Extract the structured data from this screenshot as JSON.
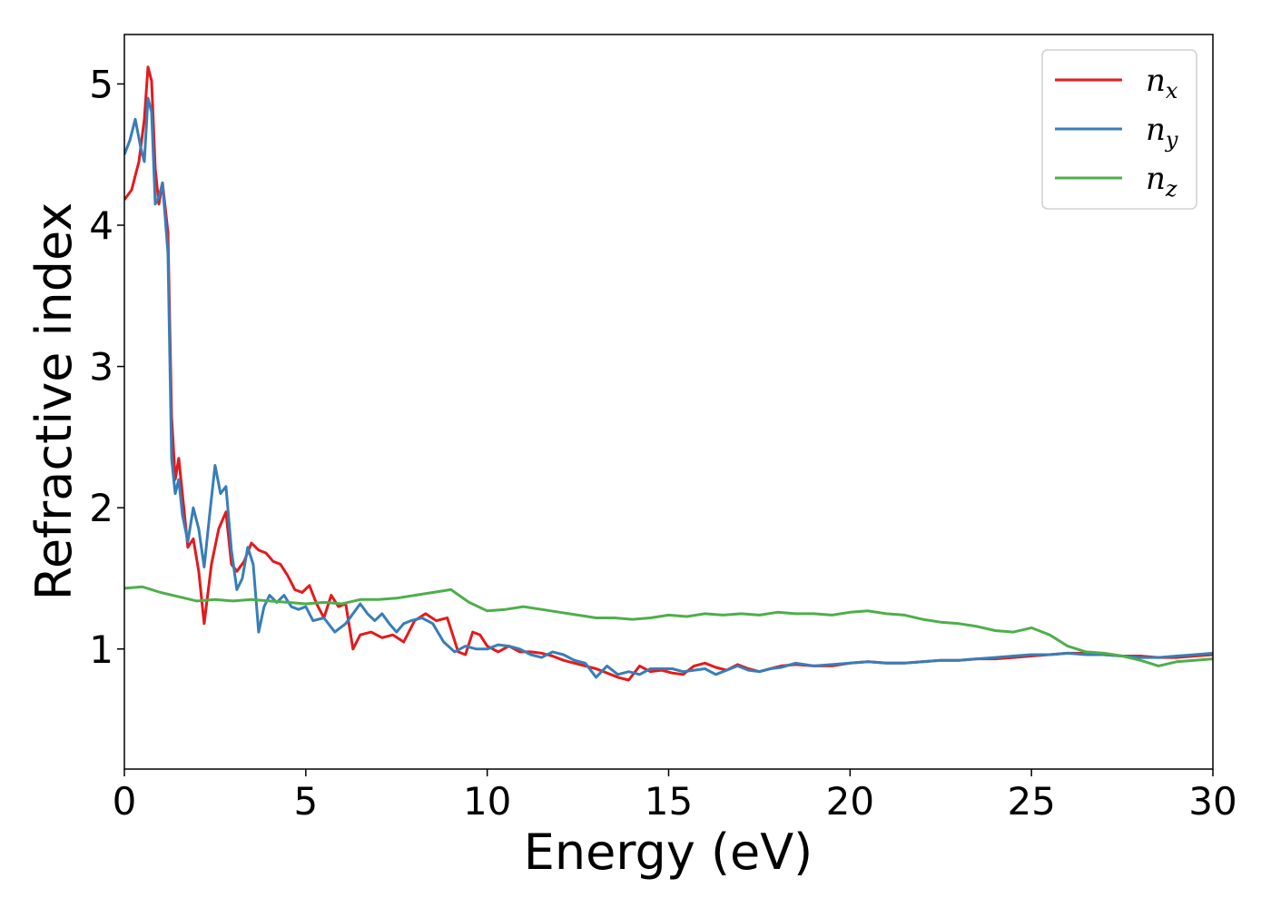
{
  "chart_data": {
    "type": "line",
    "title": "",
    "xlabel": "Energy (eV)",
    "ylabel": "Refractive index",
    "xlim": [
      0,
      30
    ],
    "ylim": [
      0.15,
      5.35
    ],
    "xticks": [
      0,
      5,
      10,
      15,
      20,
      25,
      30
    ],
    "yticks": [
      1,
      2,
      3,
      4,
      5
    ],
    "grid": false,
    "legend_position": "top-right",
    "series": [
      {
        "name": "n",
        "subscript": "x",
        "color": "#e41a1c",
        "x": [
          0,
          0.2,
          0.4,
          0.55,
          0.65,
          0.75,
          0.85,
          0.95,
          1.05,
          1.2,
          1.3,
          1.4,
          1.5,
          1.6,
          1.75,
          1.9,
          2.05,
          2.2,
          2.4,
          2.6,
          2.8,
          2.95,
          3.1,
          3.3,
          3.5,
          3.7,
          3.9,
          4.1,
          4.3,
          4.5,
          4.7,
          4.9,
          5.1,
          5.3,
          5.5,
          5.7,
          5.9,
          6.1,
          6.3,
          6.5,
          6.8,
          7.1,
          7.4,
          7.7,
          8.0,
          8.3,
          8.6,
          8.9,
          9.2,
          9.4,
          9.6,
          9.8,
          10.0,
          10.3,
          10.6,
          10.9,
          11.2,
          11.5,
          11.8,
          12.1,
          12.4,
          12.7,
          13.0,
          13.3,
          13.6,
          13.9,
          14.2,
          14.5,
          14.8,
          15.1,
          15.4,
          15.7,
          16.0,
          16.3,
          16.6,
          16.9,
          17.2,
          17.5,
          17.8,
          18.1,
          18.5,
          19.0,
          19.5,
          20.0,
          20.5,
          21.0,
          21.5,
          22.0,
          22.5,
          23.0,
          23.5,
          24.0,
          24.5,
          25.0,
          25.5,
          26.0,
          26.5,
          27.0,
          27.5,
          28.0,
          28.5,
          29.0,
          29.5,
          30.0
        ],
        "values": [
          4.18,
          4.25,
          4.45,
          4.75,
          5.12,
          5.02,
          4.4,
          4.15,
          4.3,
          3.95,
          2.65,
          2.2,
          2.35,
          2.1,
          1.72,
          1.78,
          1.55,
          1.18,
          1.6,
          1.85,
          1.97,
          1.6,
          1.55,
          1.62,
          1.75,
          1.7,
          1.68,
          1.62,
          1.6,
          1.52,
          1.42,
          1.4,
          1.45,
          1.32,
          1.22,
          1.38,
          1.3,
          1.32,
          1.0,
          1.1,
          1.12,
          1.08,
          1.1,
          1.05,
          1.2,
          1.25,
          1.2,
          1.22,
          0.98,
          0.96,
          1.12,
          1.1,
          1.02,
          0.98,
          1.02,
          0.98,
          0.98,
          0.97,
          0.95,
          0.92,
          0.9,
          0.88,
          0.86,
          0.83,
          0.8,
          0.78,
          0.88,
          0.84,
          0.85,
          0.83,
          0.82,
          0.88,
          0.9,
          0.87,
          0.85,
          0.89,
          0.86,
          0.84,
          0.86,
          0.88,
          0.89,
          0.88,
          0.88,
          0.9,
          0.91,
          0.9,
          0.9,
          0.91,
          0.92,
          0.92,
          0.93,
          0.93,
          0.94,
          0.95,
          0.96,
          0.97,
          0.97,
          0.96,
          0.95,
          0.95,
          0.94,
          0.94,
          0.95,
          0.96
        ]
      },
      {
        "name": "n",
        "subscript": "y",
        "color": "#377eb8",
        "x": [
          0,
          0.15,
          0.3,
          0.45,
          0.55,
          0.65,
          0.75,
          0.85,
          0.95,
          1.05,
          1.2,
          1.3,
          1.4,
          1.5,
          1.6,
          1.75,
          1.9,
          2.05,
          2.2,
          2.35,
          2.5,
          2.65,
          2.8,
          2.95,
          3.1,
          3.25,
          3.4,
          3.55,
          3.7,
          3.85,
          4.0,
          4.2,
          4.4,
          4.6,
          4.8,
          5.0,
          5.2,
          5.5,
          5.8,
          6.1,
          6.3,
          6.5,
          6.7,
          6.9,
          7.1,
          7.3,
          7.5,
          7.7,
          7.9,
          8.2,
          8.5,
          8.8,
          9.1,
          9.4,
          9.7,
          10.0,
          10.3,
          10.6,
          10.9,
          11.2,
          11.5,
          11.8,
          12.1,
          12.4,
          12.7,
          13.0,
          13.3,
          13.6,
          13.9,
          14.2,
          14.5,
          14.8,
          15.1,
          15.4,
          15.7,
          16.0,
          16.3,
          16.6,
          16.9,
          17.2,
          17.5,
          17.8,
          18.1,
          18.5,
          19.0,
          19.5,
          20.0,
          20.5,
          21.0,
          21.5,
          22.0,
          22.5,
          23.0,
          23.5,
          24.0,
          24.5,
          25.0,
          25.5,
          26.0,
          26.5,
          27.0,
          27.5,
          28.0,
          28.5,
          29.0,
          29.5,
          30.0
        ],
        "values": [
          4.5,
          4.6,
          4.75,
          4.55,
          4.45,
          4.9,
          4.8,
          4.15,
          4.2,
          4.3,
          3.8,
          2.35,
          2.1,
          2.2,
          1.95,
          1.76,
          2.0,
          1.85,
          1.58,
          1.95,
          2.3,
          2.1,
          2.15,
          1.7,
          1.42,
          1.5,
          1.72,
          1.6,
          1.12,
          1.3,
          1.38,
          1.33,
          1.38,
          1.3,
          1.28,
          1.3,
          1.2,
          1.22,
          1.12,
          1.18,
          1.25,
          1.32,
          1.25,
          1.2,
          1.25,
          1.18,
          1.12,
          1.18,
          1.2,
          1.22,
          1.18,
          1.05,
          0.98,
          1.02,
          1.0,
          1.0,
          1.03,
          1.02,
          1.0,
          0.96,
          0.94,
          0.98,
          0.96,
          0.92,
          0.9,
          0.8,
          0.88,
          0.82,
          0.84,
          0.82,
          0.86,
          0.86,
          0.86,
          0.84,
          0.85,
          0.86,
          0.82,
          0.85,
          0.88,
          0.85,
          0.84,
          0.86,
          0.87,
          0.9,
          0.88,
          0.89,
          0.9,
          0.91,
          0.9,
          0.9,
          0.91,
          0.92,
          0.92,
          0.93,
          0.94,
          0.95,
          0.96,
          0.96,
          0.97,
          0.96,
          0.96,
          0.95,
          0.94,
          0.94,
          0.95,
          0.96,
          0.97
        ]
      },
      {
        "name": "n",
        "subscript": "z",
        "color": "#4daf4a",
        "x": [
          0,
          0.5,
          1.0,
          1.5,
          2.0,
          2.5,
          3.0,
          3.5,
          4.0,
          4.5,
          5.0,
          5.5,
          6.0,
          6.5,
          7.0,
          7.5,
          8.0,
          8.5,
          9.0,
          9.5,
          10.0,
          10.5,
          11.0,
          11.5,
          12.0,
          12.5,
          13.0,
          13.5,
          14.0,
          14.5,
          15.0,
          15.5,
          16.0,
          16.5,
          17.0,
          17.5,
          18.0,
          18.5,
          19.0,
          19.5,
          20.0,
          20.5,
          21.0,
          21.5,
          22.0,
          22.5,
          23.0,
          23.5,
          24.0,
          24.5,
          25.0,
          25.5,
          26.0,
          26.5,
          27.0,
          27.5,
          28.0,
          28.5,
          29.0,
          29.5,
          30.0
        ],
        "values": [
          1.43,
          1.44,
          1.4,
          1.37,
          1.34,
          1.35,
          1.34,
          1.35,
          1.34,
          1.33,
          1.32,
          1.33,
          1.32,
          1.35,
          1.35,
          1.36,
          1.38,
          1.4,
          1.42,
          1.33,
          1.27,
          1.28,
          1.3,
          1.28,
          1.26,
          1.24,
          1.22,
          1.22,
          1.21,
          1.22,
          1.24,
          1.23,
          1.25,
          1.24,
          1.25,
          1.24,
          1.26,
          1.25,
          1.25,
          1.24,
          1.26,
          1.27,
          1.25,
          1.24,
          1.21,
          1.19,
          1.18,
          1.16,
          1.13,
          1.12,
          1.15,
          1.1,
          1.02,
          0.98,
          0.97,
          0.95,
          0.92,
          0.88,
          0.91,
          0.92,
          0.93
        ]
      }
    ]
  }
}
